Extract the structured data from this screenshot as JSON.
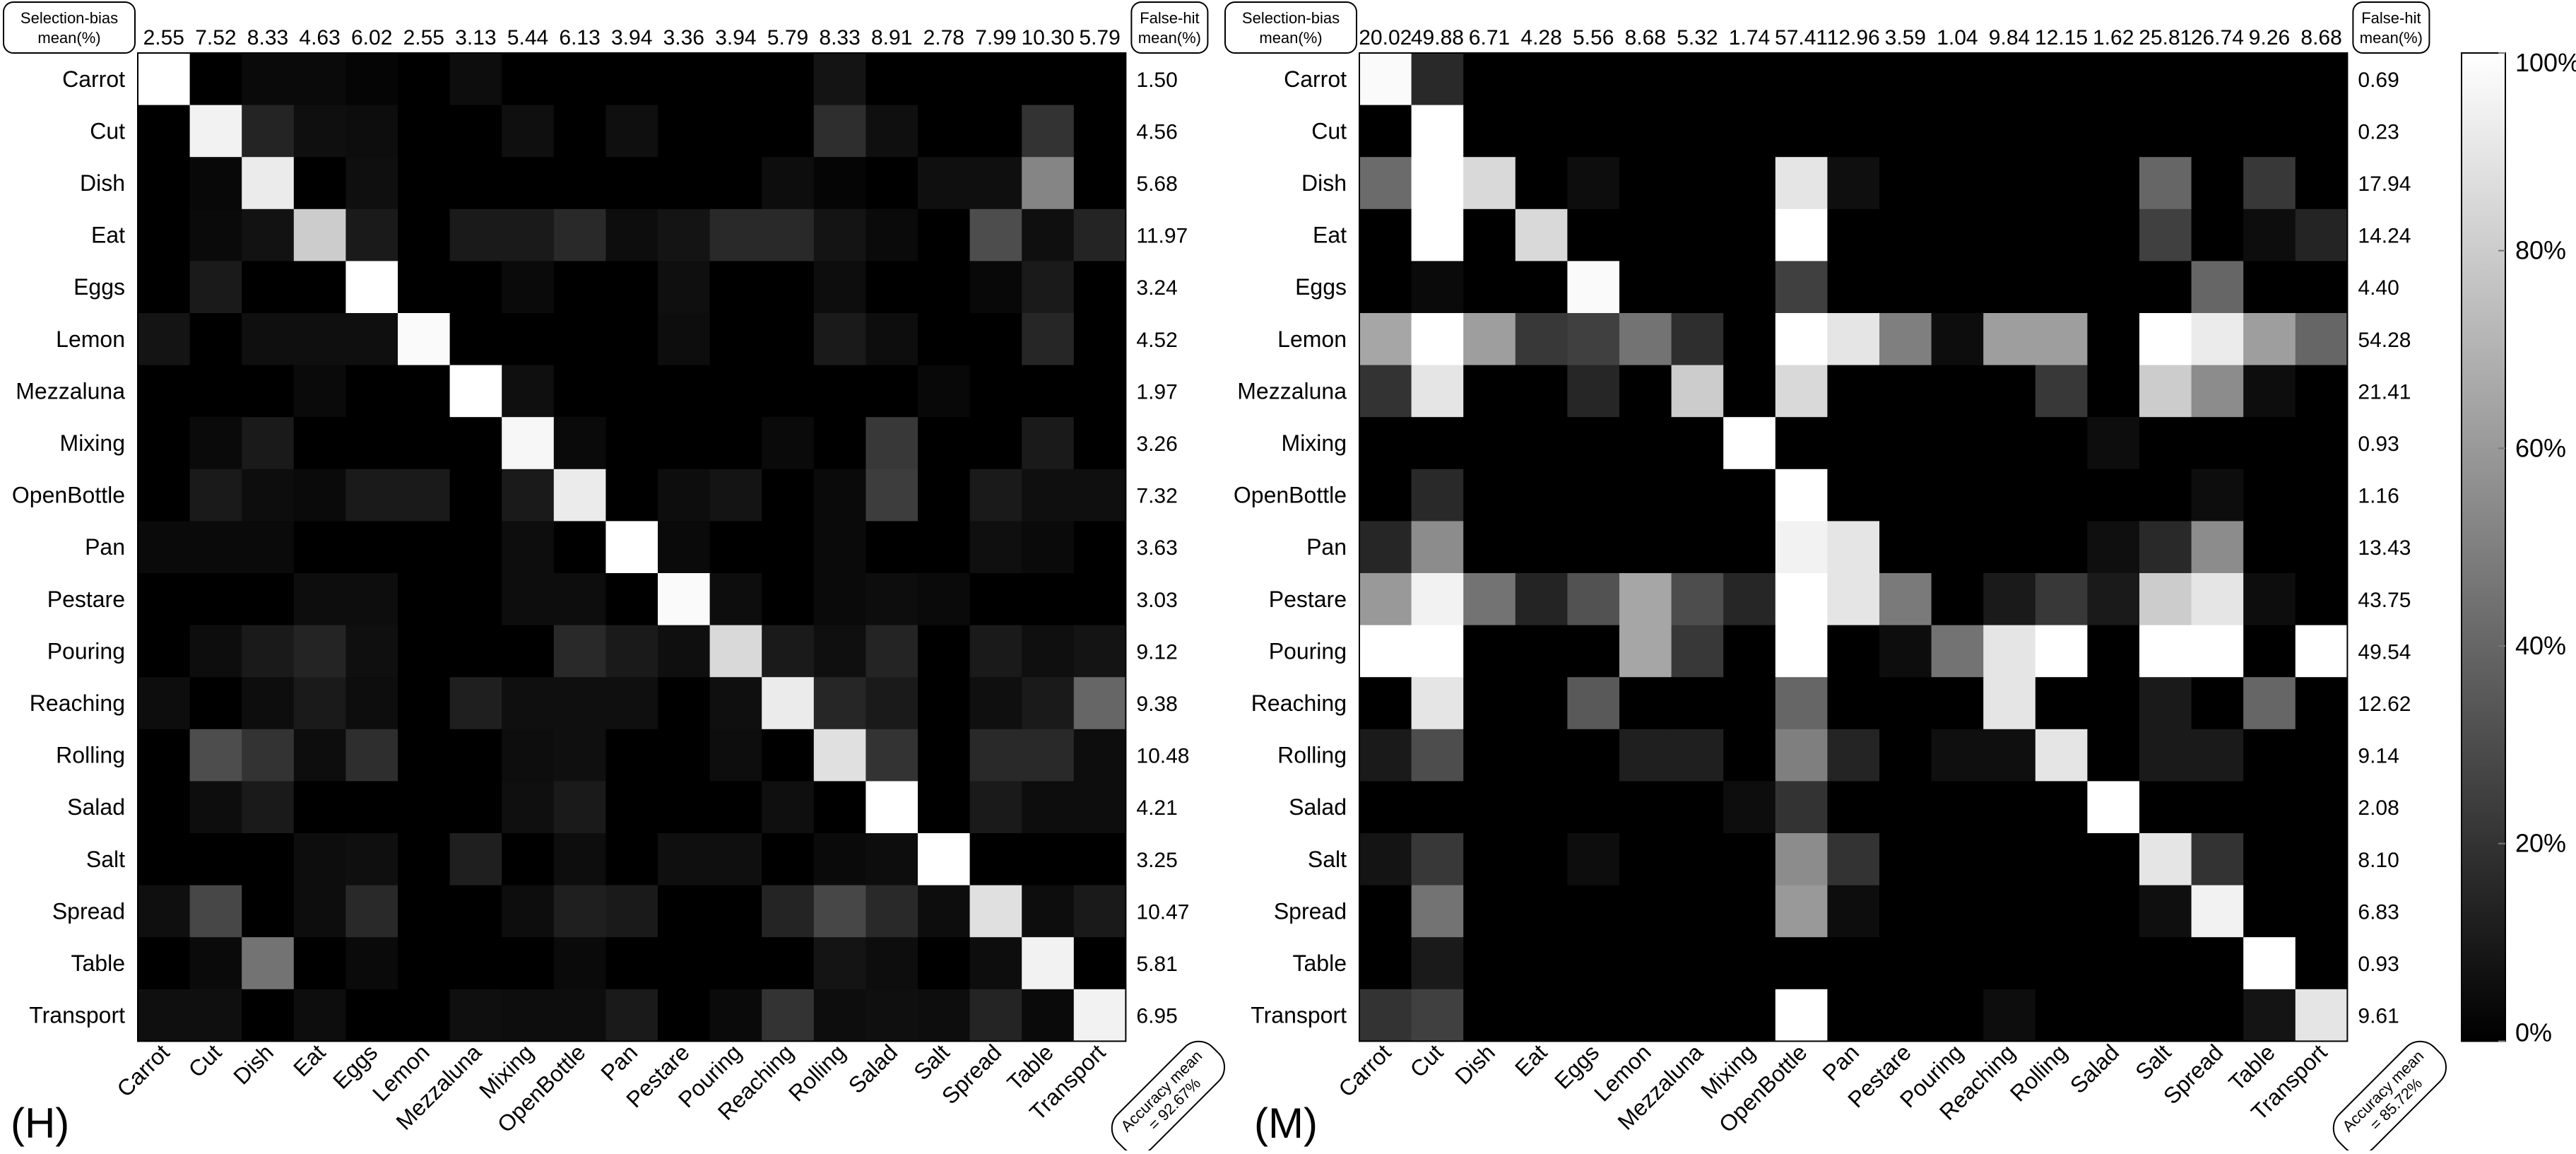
{
  "labels": [
    "Carrot",
    "Cut",
    "Dish",
    "Eat",
    "Eggs",
    "Lemon",
    "Mezzaluna",
    "Mixing",
    "OpenBottle",
    "Pan",
    "Pestare",
    "Pouring",
    "Reaching",
    "Rolling",
    "Salad",
    "Salt",
    "Spread",
    "Table",
    "Transport"
  ],
  "chart_data": [
    {
      "type": "heatmap",
      "panel": "(H)",
      "selection_bias_label": "Selection-bias mean(%)",
      "false_hit_label": "False-hit mean(%)",
      "accuracy_label": "Accuracy mean = 92.67%",
      "selection_bias": [
        "2.55",
        "7.52",
        "8.33",
        "4.63",
        "6.02",
        "2.55",
        "3.13",
        "5.44",
        "6.13",
        "3.94",
        "3.36",
        "3.94",
        "5.79",
        "8.33",
        "8.91",
        "2.78",
        "7.99",
        "10.30",
        "5.79"
      ],
      "false_hit": [
        "1.50",
        "4.56",
        "5.68",
        "11.97",
        "3.24",
        "4.52",
        "1.97",
        "3.26",
        "7.32",
        "3.63",
        "3.03",
        "9.12",
        "9.38",
        "10.48",
        "4.21",
        "3.25",
        "10.47",
        "5.81",
        "6.95"
      ],
      "matrix": [
        [
          100,
          0,
          4,
          4,
          2,
          0,
          5,
          0,
          0,
          0,
          0,
          0,
          0,
          8,
          0,
          0,
          0,
          0,
          0
        ],
        [
          0,
          95,
          14,
          6,
          5,
          0,
          0,
          6,
          0,
          6,
          0,
          0,
          0,
          18,
          6,
          0,
          0,
          20,
          0
        ],
        [
          0,
          3,
          92,
          0,
          6,
          0,
          0,
          0,
          0,
          0,
          0,
          0,
          5,
          2,
          0,
          6,
          6,
          52,
          0
        ],
        [
          0,
          4,
          7,
          80,
          10,
          0,
          10,
          10,
          16,
          5,
          8,
          16,
          16,
          8,
          4,
          0,
          30,
          6,
          14
        ],
        [
          0,
          10,
          0,
          0,
          100,
          0,
          0,
          4,
          0,
          0,
          6,
          0,
          0,
          5,
          0,
          0,
          3,
          10,
          0
        ],
        [
          8,
          0,
          6,
          6,
          6,
          98,
          0,
          0,
          0,
          0,
          5,
          0,
          0,
          10,
          5,
          0,
          0,
          15,
          0
        ],
        [
          0,
          0,
          0,
          4,
          0,
          0,
          100,
          6,
          0,
          0,
          0,
          0,
          0,
          0,
          0,
          3,
          0,
          0,
          0
        ],
        [
          0,
          4,
          10,
          0,
          0,
          0,
          0,
          97,
          4,
          0,
          0,
          0,
          4,
          0,
          22,
          0,
          0,
          10,
          0
        ],
        [
          0,
          10,
          5,
          4,
          10,
          10,
          0,
          10,
          92,
          0,
          5,
          8,
          0,
          4,
          24,
          0,
          10,
          6,
          6
        ],
        [
          4,
          4,
          4,
          0,
          0,
          0,
          0,
          5,
          0,
          100,
          4,
          0,
          0,
          4,
          0,
          0,
          6,
          4,
          0
        ],
        [
          0,
          0,
          0,
          5,
          5,
          0,
          0,
          5,
          5,
          0,
          98,
          5,
          0,
          4,
          5,
          4,
          0,
          0,
          0
        ],
        [
          0,
          5,
          10,
          14,
          6,
          0,
          0,
          0,
          16,
          10,
          6,
          85,
          10,
          6,
          14,
          0,
          10,
          6,
          8
        ],
        [
          5,
          0,
          5,
          10,
          5,
          0,
          12,
          6,
          6,
          6,
          0,
          6,
          92,
          15,
          10,
          0,
          6,
          10,
          40
        ],
        [
          0,
          30,
          20,
          5,
          18,
          0,
          0,
          5,
          6,
          0,
          0,
          5,
          0,
          88,
          20,
          0,
          16,
          16,
          5
        ],
        [
          0,
          5,
          10,
          0,
          0,
          0,
          0,
          6,
          10,
          0,
          0,
          0,
          6,
          0,
          100,
          0,
          10,
          5,
          5
        ],
        [
          0,
          0,
          0,
          5,
          6,
          0,
          12,
          0,
          5,
          0,
          6,
          6,
          0,
          4,
          5,
          100,
          0,
          0,
          0
        ],
        [
          6,
          28,
          0,
          5,
          16,
          0,
          0,
          5,
          12,
          10,
          0,
          0,
          14,
          28,
          16,
          5,
          88,
          5,
          10
        ],
        [
          0,
          4,
          45,
          0,
          4,
          0,
          0,
          0,
          4,
          0,
          0,
          0,
          0,
          8,
          5,
          0,
          5,
          95,
          0
        ],
        [
          6,
          6,
          0,
          5,
          0,
          0,
          6,
          5,
          5,
          10,
          0,
          4,
          20,
          5,
          6,
          5,
          14,
          4,
          95
        ]
      ]
    },
    {
      "type": "heatmap",
      "panel": "(M)",
      "selection_bias_label": "Selection-bias mean(%)",
      "false_hit_label": "False-hit mean(%)",
      "accuracy_label": "Accuracy mean = 85.72%",
      "selection_bias": [
        "20.02",
        "49.88",
        "6.71",
        "4.28",
        "5.56",
        "8.68",
        "5.32",
        "1.74",
        "57.41",
        "12.96",
        "3.59",
        "1.04",
        "9.84",
        "12.15",
        "1.62",
        "25.81",
        "26.74",
        "9.26",
        "8.68"
      ],
      "false_hit": [
        "0.69",
        "0.23",
        "17.94",
        "14.24",
        "4.40",
        "54.28",
        "21.41",
        "0.93",
        "1.16",
        "13.43",
        "43.75",
        "49.54",
        "12.62",
        "9.14",
        "2.08",
        "8.10",
        "6.83",
        "0.93",
        "9.61"
      ],
      "matrix": [
        [
          98,
          16,
          0,
          0,
          0,
          0,
          0,
          0,
          0,
          0,
          0,
          0,
          0,
          0,
          0,
          0,
          0,
          0,
          0
        ],
        [
          0,
          100,
          0,
          0,
          0,
          0,
          0,
          0,
          0,
          0,
          0,
          0,
          0,
          0,
          0,
          0,
          0,
          0,
          0
        ],
        [
          42,
          100,
          85,
          0,
          5,
          0,
          0,
          0,
          90,
          6,
          0,
          0,
          0,
          0,
          0,
          40,
          0,
          22,
          0
        ],
        [
          0,
          100,
          0,
          85,
          0,
          0,
          0,
          0,
          100,
          0,
          0,
          0,
          0,
          0,
          0,
          25,
          0,
          5,
          14
        ],
        [
          0,
          4,
          0,
          0,
          98,
          0,
          0,
          0,
          25,
          0,
          0,
          0,
          0,
          0,
          0,
          0,
          40,
          0,
          0
        ],
        [
          65,
          100,
          62,
          22,
          25,
          45,
          18,
          0,
          100,
          90,
          50,
          5,
          62,
          62,
          0,
          100,
          92,
          62,
          40
        ],
        [
          20,
          90,
          0,
          0,
          15,
          0,
          80,
          0,
          85,
          0,
          0,
          0,
          0,
          22,
          0,
          80,
          55,
          5,
          0
        ],
        [
          0,
          0,
          0,
          0,
          0,
          0,
          0,
          100,
          0,
          0,
          0,
          0,
          0,
          0,
          5,
          0,
          0,
          0,
          0
        ],
        [
          0,
          16,
          0,
          0,
          0,
          0,
          0,
          0,
          100,
          0,
          0,
          0,
          0,
          0,
          0,
          0,
          5,
          0,
          0
        ],
        [
          15,
          55,
          0,
          0,
          0,
          0,
          0,
          0,
          95,
          90,
          0,
          0,
          0,
          0,
          6,
          16,
          55,
          0,
          0
        ],
        [
          60,
          95,
          45,
          14,
          32,
          65,
          30,
          15,
          100,
          90,
          48,
          0,
          10,
          22,
          10,
          80,
          90,
          5,
          0
        ],
        [
          100,
          100,
          0,
          0,
          0,
          65,
          22,
          0,
          100,
          0,
          5,
          45,
          90,
          100,
          0,
          100,
          100,
          0,
          100
        ],
        [
          0,
          90,
          0,
          0,
          35,
          0,
          0,
          0,
          40,
          0,
          0,
          0,
          90,
          0,
          0,
          10,
          0,
          40,
          0
        ],
        [
          10,
          30,
          0,
          0,
          0,
          12,
          12,
          0,
          50,
          14,
          0,
          6,
          6,
          90,
          0,
          10,
          10,
          0,
          0
        ],
        [
          0,
          0,
          0,
          0,
          0,
          0,
          0,
          5,
          20,
          0,
          0,
          0,
          0,
          0,
          100,
          0,
          0,
          0,
          0
        ],
        [
          8,
          22,
          0,
          0,
          5,
          0,
          0,
          0,
          55,
          20,
          0,
          0,
          0,
          0,
          0,
          90,
          20,
          0,
          0
        ],
        [
          0,
          45,
          0,
          0,
          0,
          0,
          0,
          0,
          60,
          5,
          0,
          0,
          0,
          0,
          0,
          6,
          95,
          0,
          0
        ],
        [
          0,
          10,
          0,
          0,
          0,
          0,
          0,
          0,
          0,
          0,
          0,
          0,
          0,
          0,
          0,
          0,
          0,
          100,
          0
        ],
        [
          20,
          25,
          0,
          0,
          0,
          0,
          0,
          0,
          100,
          0,
          0,
          0,
          5,
          0,
          0,
          0,
          0,
          8,
          90
        ]
      ]
    }
  ],
  "colorbar": {
    "ticks": [
      "100%",
      "80%",
      "60%",
      "40%",
      "20%",
      "0%"
    ],
    "values": [
      100,
      80,
      60,
      40,
      20,
      0
    ]
  }
}
